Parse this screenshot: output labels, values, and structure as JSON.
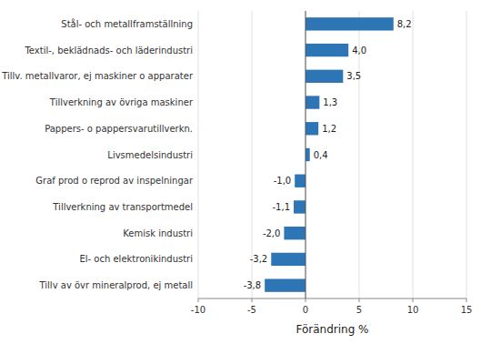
{
  "chart_data": {
    "type": "bar",
    "orientation": "horizontal",
    "categories": [
      "Tillv av övr mineralprod, ej metall",
      "El- och elektronikindustri",
      "Kemisk industri",
      "Tillverkning av transportmedel",
      "Graf prod o reprod av inspelningar",
      "Livsmedelsindustri",
      "Pappers- o pappersvarutillverkn.",
      "Tillverkning av övriga maskiner",
      "Tillv. metallvaror, ej maskiner o apparater",
      "Textil-, beklädnads- och läderindustri",
      "Stål- och metallframställning"
    ],
    "values": [
      -3.8,
      -3.2,
      -2.0,
      -1.1,
      -1.0,
      0.4,
      1.2,
      1.3,
      3.5,
      4.0,
      8.2
    ],
    "value_labels": [
      "-3,8",
      "-3,2",
      "-2,0",
      "-1,1",
      "-1,0",
      "0,4",
      "1,2",
      "1,3",
      "3,5",
      "4,0",
      "8,2"
    ],
    "data_labels": true,
    "color": "#2e75b6",
    "xlabel": "Förändring %",
    "xlim": [
      -10,
      15
    ],
    "xticks": [
      -10,
      -5,
      0,
      5,
      10,
      15
    ],
    "grid": true
  }
}
